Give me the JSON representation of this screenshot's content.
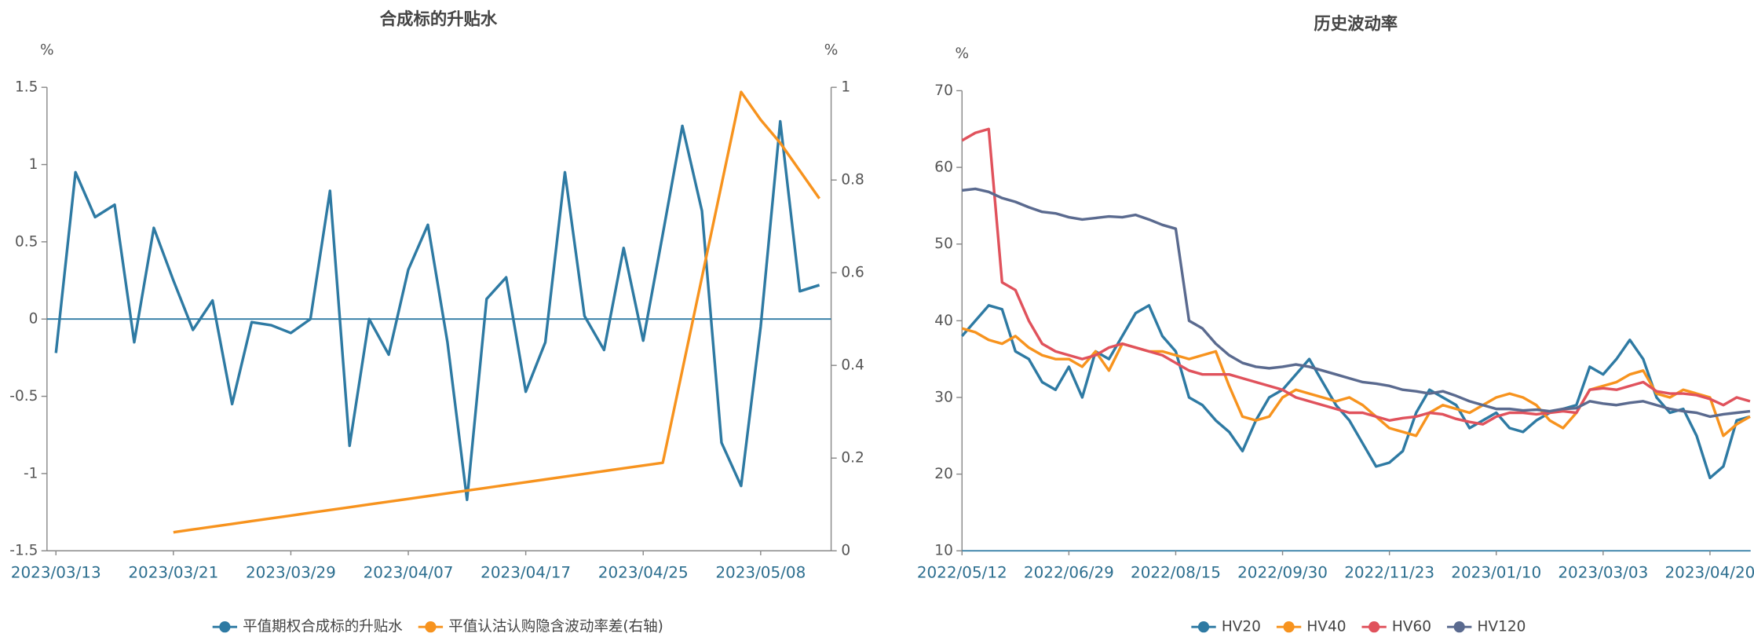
{
  "chart_data": [
    {
      "type": "line",
      "title": "合成标的升贴水",
      "ylabel": "%",
      "y2label": "%",
      "categories": [
        "2023/03/13",
        null,
        null,
        null,
        null,
        null,
        "2023/03/21",
        null,
        null,
        null,
        null,
        null,
        "2023/03/29",
        null,
        null,
        null,
        null,
        null,
        "2023/04/07",
        null,
        null,
        null,
        null,
        null,
        "2023/04/17",
        null,
        null,
        null,
        null,
        null,
        "2023/04/25",
        null,
        null,
        null,
        null,
        null,
        "2023/05/08",
        null,
        null,
        null
      ],
      "ylim": [
        -1.5,
        1.5
      ],
      "yticks": [
        -1.5,
        -1,
        -0.5,
        0,
        0.5,
        1,
        1.5
      ],
      "y2lim": [
        0,
        1
      ],
      "y2ticks": [
        0,
        0.2,
        0.4,
        0.6,
        0.8,
        1
      ],
      "series": [
        {
          "name": "平值期权合成标的升贴水",
          "color": "#2e7aa3",
          "values": [
            -0.22,
            0.95,
            0.66,
            0.74,
            -0.15,
            0.59,
            0.25,
            -0.07,
            0.12,
            -0.55,
            -0.02,
            -0.04,
            -0.09,
            0.0,
            0.83,
            -0.82,
            0.0,
            -0.23,
            0.32,
            0.61,
            -0.15,
            -1.17,
            0.13,
            0.27,
            -0.47,
            -0.15,
            0.95,
            0.02,
            -0.2,
            0.46,
            -0.14,
            0.55,
            1.25,
            0.7,
            -0.8,
            -1.08,
            -0.05,
            1.28,
            0.18,
            0.22
          ]
        },
        {
          "name": "平值认沽认购隐含波动率差(右轴)",
          "color": "#f7931e",
          "axis": "y2",
          "values": [
            null,
            null,
            null,
            null,
            null,
            null,
            0.04,
            0.046,
            0.052,
            0.058,
            0.064,
            0.07,
            0.076,
            0.082,
            0.088,
            0.094,
            0.1,
            0.106,
            0.112,
            0.118,
            0.124,
            0.13,
            0.136,
            0.142,
            0.148,
            0.154,
            0.16,
            0.166,
            0.172,
            0.178,
            0.184,
            0.19,
            0.39,
            0.59,
            0.79,
            0.99,
            0.93,
            0.88,
            0.82,
            0.76
          ]
        }
      ]
    },
    {
      "type": "line",
      "title": "历史波动率",
      "ylabel": "%",
      "categories": [
        "2022/05/12",
        null,
        null,
        null,
        null,
        null,
        null,
        null,
        "2022/06/29",
        null,
        null,
        null,
        null,
        null,
        null,
        null,
        "2022/08/15",
        null,
        null,
        null,
        null,
        null,
        null,
        null,
        "2022/09/30",
        null,
        null,
        null,
        null,
        null,
        null,
        null,
        "2022/11/23",
        null,
        null,
        null,
        null,
        null,
        null,
        null,
        "2023/01/10",
        null,
        null,
        null,
        null,
        null,
        null,
        null,
        "2023/03/03",
        null,
        null,
        null,
        null,
        null,
        null,
        null,
        "2023/04/20",
        null,
        null,
        null
      ],
      "ylim": [
        10,
        70
      ],
      "yticks": [
        10,
        20,
        30,
        40,
        50,
        60,
        70
      ],
      "series": [
        {
          "name": "HV20",
          "color": "#2e7aa3",
          "values": [
            38,
            40,
            42,
            41.5,
            36,
            35,
            32,
            31,
            34,
            30,
            36,
            35,
            38,
            41,
            42,
            38,
            36,
            30,
            29,
            27,
            25.5,
            23,
            27,
            30,
            31,
            33,
            35,
            32,
            29,
            27,
            24,
            21,
            21.5,
            23,
            28,
            31,
            30,
            29,
            26,
            27,
            28,
            26,
            25.5,
            27,
            28,
            28.5,
            29,
            34,
            33,
            35,
            37.5,
            35,
            30,
            28,
            28.5,
            25,
            19.5,
            21,
            27,
            27.5
          ]
        },
        {
          "name": "HV40",
          "color": "#f7931e",
          "values": [
            39,
            38.5,
            37.5,
            37,
            38,
            36.5,
            35.5,
            35,
            35,
            34,
            36,
            33.5,
            37,
            36.5,
            36,
            36,
            35.5,
            35,
            35.5,
            36,
            31.5,
            27.5,
            27,
            27.5,
            30,
            31,
            30.5,
            30,
            29.5,
            30,
            29,
            27.5,
            26,
            25.5,
            25,
            28,
            29,
            28.5,
            28,
            29,
            30,
            30.5,
            30,
            29,
            27,
            26,
            28,
            31,
            31.5,
            32,
            33,
            33.5,
            30.5,
            30,
            31,
            30.5,
            30,
            25,
            26.5,
            27.5
          ]
        },
        {
          "name": "HV60",
          "color": "#e0525c",
          "values": [
            63.5,
            64.5,
            65,
            45,
            44,
            40,
            37,
            36,
            35.5,
            35,
            35.5,
            36.5,
            37,
            36.5,
            36,
            35.5,
            34.5,
            33.5,
            33,
            33,
            33,
            32.5,
            32,
            31.5,
            31,
            30,
            29.5,
            29,
            28.5,
            28,
            28,
            27.5,
            27,
            27.3,
            27.5,
            28,
            27.8,
            27.2,
            26.8,
            26.5,
            27.5,
            28,
            28,
            27.8,
            28,
            28.2,
            28,
            31,
            31.2,
            31,
            31.5,
            32,
            30.8,
            30.5,
            30.5,
            30.3,
            29.8,
            29,
            30,
            29.5
          ]
        },
        {
          "name": "HV120",
          "color": "#5a6a8f",
          "values": [
            57,
            57.2,
            56.8,
            56,
            55.5,
            54.8,
            54.2,
            54,
            53.5,
            53.2,
            53.4,
            53.6,
            53.5,
            53.8,
            53.2,
            52.5,
            52,
            40,
            39,
            37,
            35.5,
            34.5,
            34,
            33.8,
            34,
            34.3,
            34,
            33.5,
            33,
            32.5,
            32,
            31.8,
            31.5,
            31,
            30.8,
            30.5,
            30.8,
            30.2,
            29.5,
            29,
            28.5,
            28.5,
            28.3,
            28.4,
            28.2,
            28.5,
            28.6,
            29.5,
            29.2,
            29,
            29.3,
            29.5,
            29,
            28.5,
            28.2,
            28,
            27.5,
            27.8,
            28,
            28.2
          ]
        }
      ]
    }
  ]
}
